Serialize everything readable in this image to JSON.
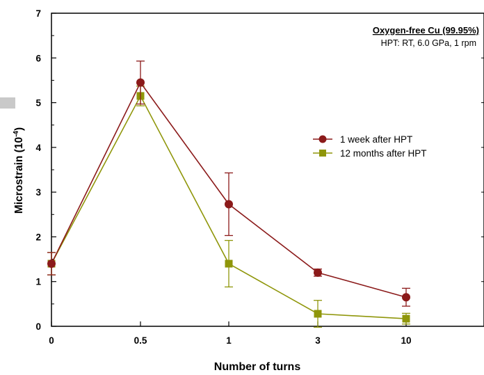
{
  "chart_data": {
    "type": "line",
    "title": "Oxygen-free Cu (99.95%)",
    "subtitle": "HPT: RT, 6.0 GPa, 1 rpm",
    "xlabel": "Number of turns",
    "ylabel": "Microstrain (10",
    "ylabel_exponent": "-4",
    "ylabel_close": ")",
    "categories": [
      "0",
      "0.5",
      "1",
      "3",
      "10"
    ],
    "ylim": [
      0,
      7
    ],
    "yticks": [
      "0",
      "1",
      "2",
      "3",
      "4",
      "5",
      "6",
      "7"
    ],
    "grid": false,
    "legend_position": "right",
    "series": [
      {
        "name": "1 week after HPT",
        "color": "#8b1a1a",
        "marker": "circle",
        "values": [
          1.4,
          5.45,
          2.73,
          1.2,
          0.65
        ],
        "error": [
          0.25,
          0.48,
          0.7,
          0.08,
          0.2
        ]
      },
      {
        "name": "12 months after HPT",
        "color": "#8f960a",
        "marker": "square",
        "values": [
          1.4,
          5.15,
          1.4,
          0.28,
          0.17
        ],
        "error": [
          0.25,
          0.22,
          0.52,
          0.3,
          0.12
        ]
      }
    ]
  }
}
